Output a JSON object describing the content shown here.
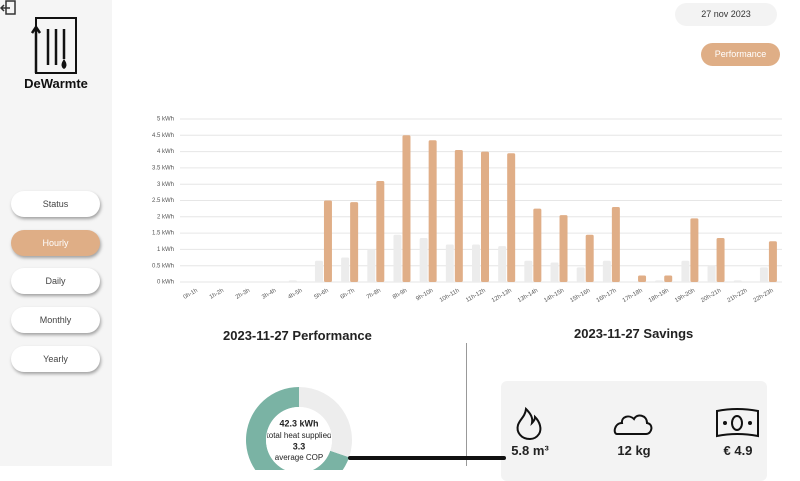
{
  "sidebar": {
    "brand": "DeWarmte",
    "menu": [
      "Status",
      "Hourly",
      "Daily",
      "Monthly",
      "Yearly"
    ],
    "active": 1
  },
  "header": {
    "date": "27 nov 2023",
    "button": "Performance"
  },
  "chart_data": {
    "type": "bar",
    "categories": [
      "0h-1h",
      "1h-2h",
      "2h-3h",
      "3h-4h",
      "4h-5h",
      "5h-6h",
      "6h-7h",
      "7h-8h",
      "8h-9h",
      "9h-10h",
      "10h-11h",
      "11h-12h",
      "12h-13h",
      "13h-14h",
      "14h-15h",
      "15h-16h",
      "16h-17h",
      "17h-18h",
      "18h-19h",
      "19h-20h",
      "20h-21h",
      "21h-22h",
      "22h-23h"
    ],
    "series": [
      {
        "color": "#ececec",
        "values": [
          0,
          0,
          0,
          0,
          0.05,
          0.65,
          0.75,
          1.0,
          1.45,
          1.35,
          1.15,
          1.15,
          1.1,
          0.65,
          0.6,
          0.45,
          0.65,
          0,
          0.05,
          0.65,
          0.5,
          0.05,
          0.45
        ]
      },
      {
        "color": "#e0ae87",
        "values": [
          0,
          0,
          0,
          0,
          0,
          2.5,
          2.45,
          3.1,
          4.5,
          4.35,
          4.05,
          4.0,
          3.95,
          2.25,
          2.05,
          1.45,
          2.3,
          0.2,
          0.2,
          1.95,
          1.35,
          0,
          1.25
        ]
      }
    ],
    "ylim": [
      0,
      5
    ],
    "yticks": [
      {
        "value": 0,
        "label": "0 kWh"
      },
      {
        "value": 0.5,
        "label": "0.5 kWh"
      },
      {
        "value": 1,
        "label": "1 kWh"
      },
      {
        "value": 1.5,
        "label": "1.5 kWh"
      },
      {
        "value": 2,
        "label": "2 kWh"
      },
      {
        "value": 2.5,
        "label": "2.5 kWh"
      },
      {
        "value": 3,
        "label": "3 kWh"
      },
      {
        "value": 3.5,
        "label": "3.5 kWh"
      },
      {
        "value": 4,
        "label": "4 kWh"
      },
      {
        "value": 4.5,
        "label": "4.5 kWh"
      },
      {
        "value": 5,
        "label": "5 kWh"
      }
    ],
    "grid": true
  },
  "performance": {
    "title": "2023-11-27 Performance",
    "values": [
      29.5,
      12.8
    ],
    "colors": [
      "#7ab3a4",
      "#ededed"
    ],
    "center": [
      "42.3 kWh",
      "total heat supplied",
      "3.3",
      "average COP"
    ]
  },
  "savings": {
    "title": "2023-11-27 Savings",
    "items": [
      "5.8 m³",
      "12 kg",
      "€ 4.9"
    ]
  }
}
